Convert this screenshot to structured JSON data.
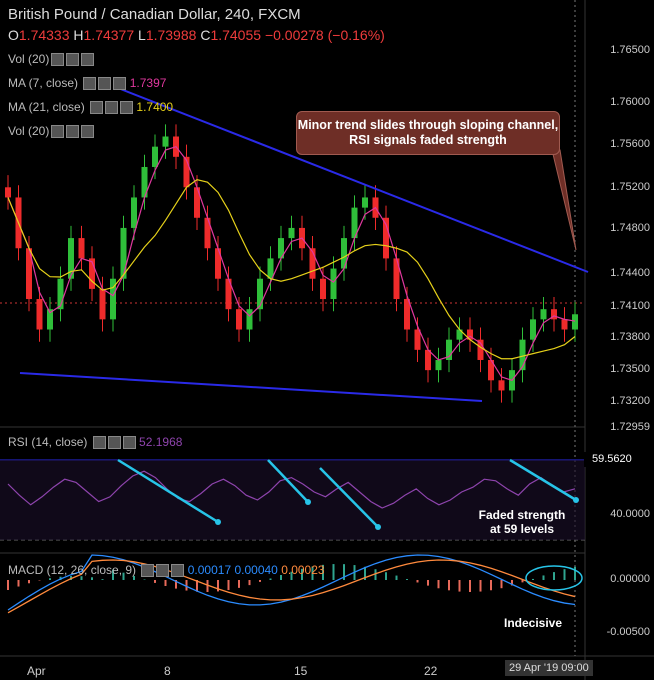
{
  "header": {
    "title": "British Pound / Canadian Dollar, 240, FXCM",
    "ohlc": {
      "o_key": "O",
      "o": "1.74333",
      "h_key": "H",
      "h": "1.74377",
      "l_key": "L",
      "l": "1.73988",
      "c_key": "C",
      "c": "1.74055",
      "change": "−0.00278 (−0.16%)"
    }
  },
  "indicators": {
    "vol1": "Vol (20)",
    "ma7": "MA (7, close)",
    "ma7_value": "1.7397",
    "ma21": "MA (21, close)",
    "ma21_value": "1.7400",
    "vol2": "Vol (20)",
    "rsi": "RSI (14, close)",
    "rsi_value": "52.1968",
    "macd": "MACD (12, 26, close, 9)",
    "macd_v1": "0.00017",
    "macd_v2": "0.00040",
    "macd_v3": "0.00023"
  },
  "annotations": {
    "callout": "Minor trend slides through sloping channel, RSI signals faded strength",
    "rsi_note": "Faded strength at 59 levels",
    "macd_note": "Indecisive"
  },
  "price_axis": [
    "1.76500",
    "1.76000",
    "1.75600",
    "1.75200",
    "1.74800",
    "1.74400",
    "1.74100",
    "1.73800",
    "1.73500",
    "1.73200",
    "1.72959"
  ],
  "rsi_axis": [
    "59.5620",
    "40.0000"
  ],
  "macd_axis": [
    "0.00000",
    "-0.00500"
  ],
  "time_axis": [
    "Apr",
    "8",
    "15",
    "22",
    "29 Apr '19",
    "09:00"
  ],
  "colors": {
    "up": "#2fbf3a",
    "down": "#ef2b2b",
    "ma7": "#e0389e",
    "ma21": "#e6d11a",
    "trend": "#2a2ae8",
    "rsi": "#8e44ad",
    "arrow": "#27c4e8"
  },
  "chart_data": {
    "type": "candlestick",
    "ylim": [
      1.7296,
      1.7675
    ],
    "series": [
      {
        "name": "Price",
        "close": [
          1.752,
          1.747,
          1.742,
          1.739,
          1.741,
          1.744,
          1.748,
          1.746,
          1.743,
          1.74,
          1.744,
          1.749,
          1.752,
          1.755,
          1.757,
          1.758,
          1.756,
          1.753,
          1.75,
          1.747,
          1.744,
          1.741,
          1.739,
          1.741,
          1.744,
          1.746,
          1.748,
          1.749,
          1.747,
          1.744,
          1.742,
          1.745,
          1.748,
          1.751,
          1.752,
          1.75,
          1.746,
          1.742,
          1.739,
          1.737,
          1.735,
          1.736,
          1.738,
          1.739,
          1.738,
          1.736,
          1.734,
          1.733,
          1.735,
          1.738,
          1.74,
          1.741,
          1.74,
          1.739,
          1.7405
        ]
      },
      {
        "name": "RSI (14, close)",
        "values": [
          55,
          48,
          42,
          47,
          53,
          58,
          56,
          50,
          44,
          47,
          54,
          60,
          63,
          59,
          52,
          46,
          44,
          49,
          55,
          58,
          54,
          48,
          45,
          50,
          57,
          59,
          55,
          50,
          47,
          52,
          56,
          50,
          44,
          40,
          43,
          48,
          52,
          46,
          42,
          45,
          50,
          53,
          58,
          57,
          52,
          48,
          55,
          59,
          54,
          50,
          52
        ]
      }
    ]
  }
}
